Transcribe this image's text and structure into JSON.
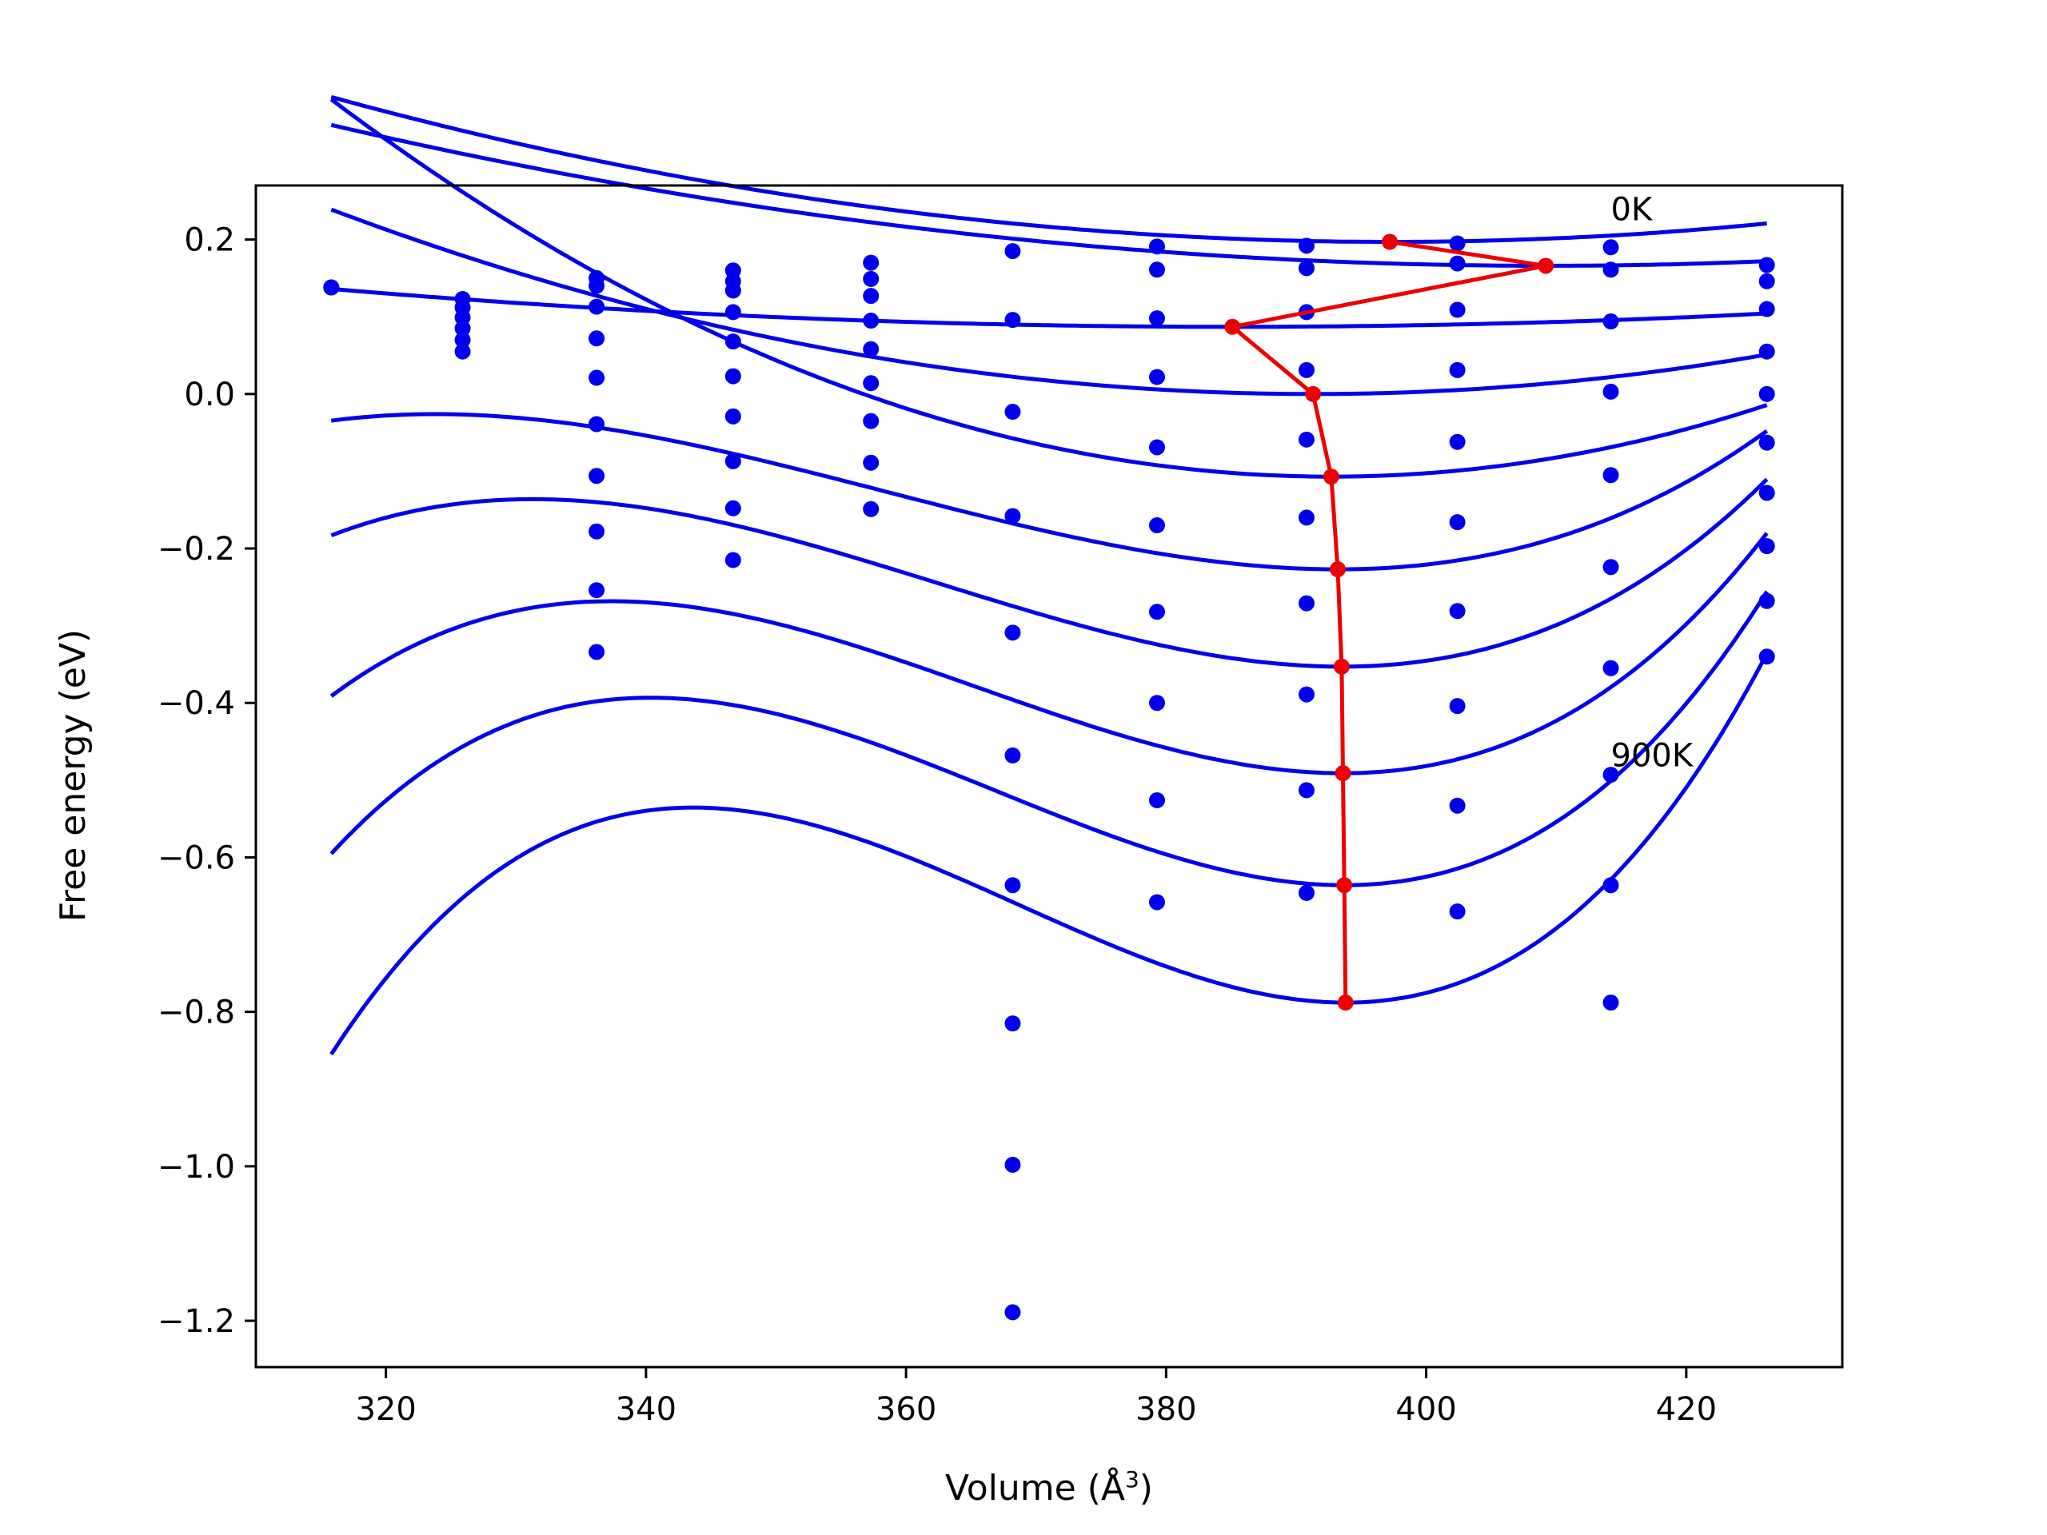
{
  "chart_data": {
    "type": "line",
    "xlabel": "Volume (Å³)",
    "ylabel": "Free energy (eV)",
    "xlim": [
      310,
      432
    ],
    "ylim": [
      -1.26,
      0.27
    ],
    "xticks": [
      320,
      340,
      360,
      380,
      400,
      420
    ],
    "yticks": [
      0.2,
      0.0,
      -0.2,
      -0.4,
      -0.6,
      -0.8,
      -1.0,
      -1.2
    ],
    "xtick_labels": [
      "320",
      "340",
      "360",
      "380",
      "400",
      "420"
    ],
    "ytick_labels": [
      "0.2",
      "0.0",
      "−0.2",
      "−0.4",
      "−0.6",
      "−0.8",
      "−1.0",
      "−1.2"
    ],
    "grid": false,
    "legend": "none",
    "colors": {
      "points": "#0000ee",
      "curves": "#0000ee",
      "minima": "#ee0000"
    },
    "annotations": [
      {
        "text": "0K",
        "x": 414.2,
        "y": 0.225
      },
      {
        "text": "900K",
        "x": 414.2,
        "y": -0.482
      }
    ],
    "scatter_points": [
      [
        315.8,
        0.138
      ],
      [
        315.8,
        0.138
      ],
      [
        325.9,
        0.123
      ],
      [
        325.9,
        0.112
      ],
      [
        325.9,
        0.099
      ],
      [
        325.9,
        0.085
      ],
      [
        325.9,
        0.07
      ],
      [
        325.9,
        0.055
      ],
      [
        336.2,
        0.15
      ],
      [
        336.2,
        0.14
      ],
      [
        336.2,
        0.113
      ],
      [
        336.2,
        0.072
      ],
      [
        336.2,
        0.021
      ],
      [
        336.2,
        -0.039
      ],
      [
        336.2,
        -0.106
      ],
      [
        336.2,
        -0.178
      ],
      [
        336.2,
        -0.254
      ],
      [
        336.2,
        -0.334
      ],
      [
        346.7,
        0.16
      ],
      [
        346.7,
        0.146
      ],
      [
        346.7,
        0.134
      ],
      [
        346.7,
        0.106
      ],
      [
        346.7,
        0.068
      ],
      [
        346.7,
        0.023
      ],
      [
        346.7,
        -0.029
      ],
      [
        346.7,
        -0.087
      ],
      [
        346.7,
        -0.148
      ],
      [
        346.7,
        -0.215
      ],
      [
        357.3,
        0.17
      ],
      [
        357.3,
        0.149
      ],
      [
        357.3,
        0.127
      ],
      [
        357.3,
        0.095
      ],
      [
        357.3,
        0.058
      ],
      [
        357.3,
        0.014
      ],
      [
        357.3,
        -0.035
      ],
      [
        357.3,
        -0.089
      ],
      [
        357.3,
        -0.149
      ],
      [
        368.2,
        0.185
      ],
      [
        368.2,
        0.096
      ],
      [
        368.2,
        -0.023
      ],
      [
        368.2,
        -0.158
      ],
      [
        368.2,
        -0.309
      ],
      [
        368.2,
        -0.468
      ],
      [
        368.2,
        -0.636
      ],
      [
        368.2,
        -0.815
      ],
      [
        368.2,
        -0.998
      ],
      [
        368.2,
        -1.189
      ],
      [
        379.3,
        0.191
      ],
      [
        379.3,
        0.161
      ],
      [
        379.3,
        0.098
      ],
      [
        379.3,
        0.022
      ],
      [
        379.3,
        -0.069
      ],
      [
        379.3,
        -0.17
      ],
      [
        379.3,
        -0.282
      ],
      [
        379.3,
        -0.4
      ],
      [
        379.3,
        -0.526
      ],
      [
        379.3,
        -0.658
      ],
      [
        390.8,
        0.192
      ],
      [
        390.8,
        0.163
      ],
      [
        390.8,
        0.106
      ],
      [
        390.8,
        0.031
      ],
      [
        390.8,
        -0.059
      ],
      [
        390.8,
        -0.16
      ],
      [
        390.8,
        -0.271
      ],
      [
        390.8,
        -0.389
      ],
      [
        390.8,
        -0.513
      ],
      [
        390.8,
        -0.646
      ],
      [
        402.4,
        0.195
      ],
      [
        402.4,
        0.169
      ],
      [
        402.4,
        0.109
      ],
      [
        402.4,
        0.031
      ],
      [
        402.4,
        -0.062
      ],
      [
        402.4,
        -0.166
      ],
      [
        402.4,
        -0.281
      ],
      [
        402.4,
        -0.404
      ],
      [
        402.4,
        -0.533
      ],
      [
        402.4,
        -0.67
      ],
      [
        414.2,
        0.19
      ],
      [
        414.2,
        0.161
      ],
      [
        414.2,
        0.094
      ],
      [
        414.2,
        0.003
      ],
      [
        414.2,
        -0.105
      ],
      [
        414.2,
        -0.224
      ],
      [
        414.2,
        -0.355
      ],
      [
        414.2,
        -0.493
      ],
      [
        414.2,
        -0.636
      ],
      [
        414.2,
        -0.788
      ],
      [
        426.2,
        0.167
      ],
      [
        426.2,
        0.146
      ],
      [
        426.2,
        0.11
      ],
      [
        426.2,
        0.055
      ],
      [
        426.2,
        0.0
      ],
      [
        426.2,
        -0.063
      ],
      [
        426.2,
        -0.128
      ],
      [
        426.2,
        -0.197
      ],
      [
        426.2,
        -0.268
      ],
      [
        426.2,
        -0.34
      ]
    ],
    "fit_curves": [
      {
        "v0": 397.2,
        "emin": 0.197,
        "k": 2.83e-05,
        "cubic": 0
      },
      {
        "v0": 409.2,
        "emin": 0.166,
        "k": 2.09e-05,
        "cubic": 0
      },
      {
        "v0": 385.1,
        "emin": 0.087,
        "k": 1.02e-05,
        "cubic": 0
      },
      {
        "v0": 391.3,
        "emin": 0.0,
        "k": 4.19e-05,
        "cubic": 0
      },
      {
        "v0": 392.7,
        "emin": -0.107,
        "k": 8.26e-05,
        "cubic": 0
      },
      {
        "v0": 393.2,
        "emin": -0.227,
        "k": 0.000125,
        "cubic": 1.2e-06
      },
      {
        "v0": 393.5,
        "emin": -0.353,
        "k": 0.000168,
        "cubic": 1.8e-06
      },
      {
        "v0": 393.6,
        "emin": -0.491,
        "k": 0.000211,
        "cubic": 2.5e-06
      },
      {
        "v0": 393.7,
        "emin": -0.636,
        "k": 0.000256,
        "cubic": 3.2e-06
      },
      {
        "v0": 393.8,
        "emin": -0.788,
        "k": 0.000301,
        "cubic": 4e-06
      }
    ],
    "curve_x_range": [
      315.8,
      426.2
    ],
    "minima_path": [
      [
        397.2,
        0.197
      ],
      [
        409.2,
        0.166
      ],
      [
        385.1,
        0.087
      ],
      [
        391.3,
        0.0
      ],
      [
        392.7,
        -0.107
      ],
      [
        393.2,
        -0.227
      ],
      [
        393.5,
        -0.353
      ],
      [
        393.6,
        -0.491
      ],
      [
        393.7,
        -0.636
      ],
      [
        393.8,
        -0.788
      ]
    ]
  }
}
